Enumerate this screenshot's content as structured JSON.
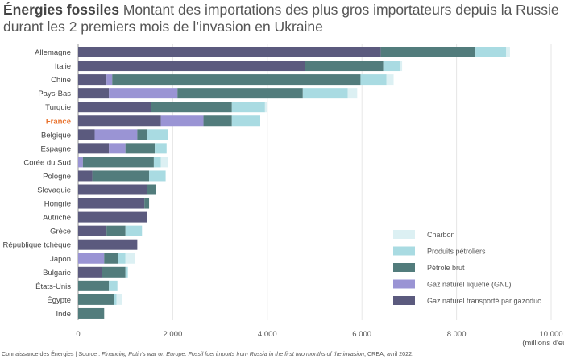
{
  "title_bold": "Énergies fossiles",
  "title_rest": "Montant des importations des plus gros importateurs depuis la Russie durant les 2 premiers mois de l’invasion en Ukraine",
  "source_prefix": "Connaissance des Énergies | Source : ",
  "source_italic": "Financing Putin’s war on Europe: Fossil fuel imports from Russia in the first two months of the invasion",
  "source_suffix": ", CREA, avril 2022.",
  "colors": {
    "gazoduc": "#5b5a7e",
    "gnl": "#9a94d4",
    "petrole": "#527c7c",
    "produits": "#a9dbe2",
    "charbon": "#dcf0f3",
    "highlight_label": "#e8702a",
    "grid": "#e6e6e6",
    "axis": "#999999"
  },
  "chart_data": {
    "type": "bar",
    "orientation": "horizontal",
    "stacked": true,
    "x_unit_label": "(millions d'euros)",
    "xlim": [
      0,
      10000
    ],
    "x_ticks": [
      0,
      2000,
      4000,
      6000,
      8000,
      10000
    ],
    "x_tick_labels": [
      "0",
      "2 000",
      "4 000",
      "6 000",
      "8 000",
      "10 000"
    ],
    "grid": true,
    "legend_position": "bottom-right",
    "highlight_category": "France",
    "categories": [
      "Allemagne",
      "Italie",
      "Chine",
      "Pays-Bas",
      "Turquie",
      "France",
      "Belgique",
      "Espagne",
      "Corée du Sud",
      "Pologne",
      "Slovaquie",
      "Hongrie",
      "Autriche",
      "Grèce",
      "République tchèque",
      "Japon",
      "Bulgarie",
      "États-Unis",
      "Égypte",
      "Inde"
    ],
    "series": [
      {
        "name": "Gaz naturel transporté par gazoduc",
        "key": "gazoduc",
        "values": [
          6400,
          4800,
          600,
          650,
          1550,
          1750,
          350,
          650,
          0,
          300,
          1450,
          1400,
          1450,
          600,
          1250,
          0,
          500,
          0,
          0,
          0
        ]
      },
      {
        "name": "Gaz naturel liquéfié (GNL)",
        "key": "gnl",
        "values": [
          0,
          0,
          120,
          1450,
          0,
          900,
          900,
          350,
          100,
          0,
          0,
          0,
          0,
          0,
          0,
          550,
          0,
          0,
          0,
          0
        ]
      },
      {
        "name": "Pétrole brut",
        "key": "petrole",
        "values": [
          2000,
          1650,
          5250,
          2650,
          1700,
          600,
          200,
          620,
          1500,
          1200,
          200,
          100,
          0,
          400,
          0,
          300,
          500,
          650,
          750,
          550
        ]
      },
      {
        "name": "Produits pétroliers",
        "key": "produits",
        "values": [
          650,
          350,
          550,
          950,
          700,
          600,
          450,
          250,
          150,
          350,
          0,
          0,
          0,
          350,
          0,
          150,
          50,
          180,
          60,
          0
        ]
      },
      {
        "name": "Charbon",
        "key": "charbon",
        "values": [
          80,
          50,
          150,
          200,
          50,
          0,
          0,
          0,
          150,
          0,
          0,
          0,
          0,
          0,
          0,
          200,
          0,
          0,
          110,
          0
        ]
      }
    ],
    "legend_order": [
      "charbon",
      "produits",
      "petrole",
      "gnl",
      "gazoduc"
    ]
  }
}
